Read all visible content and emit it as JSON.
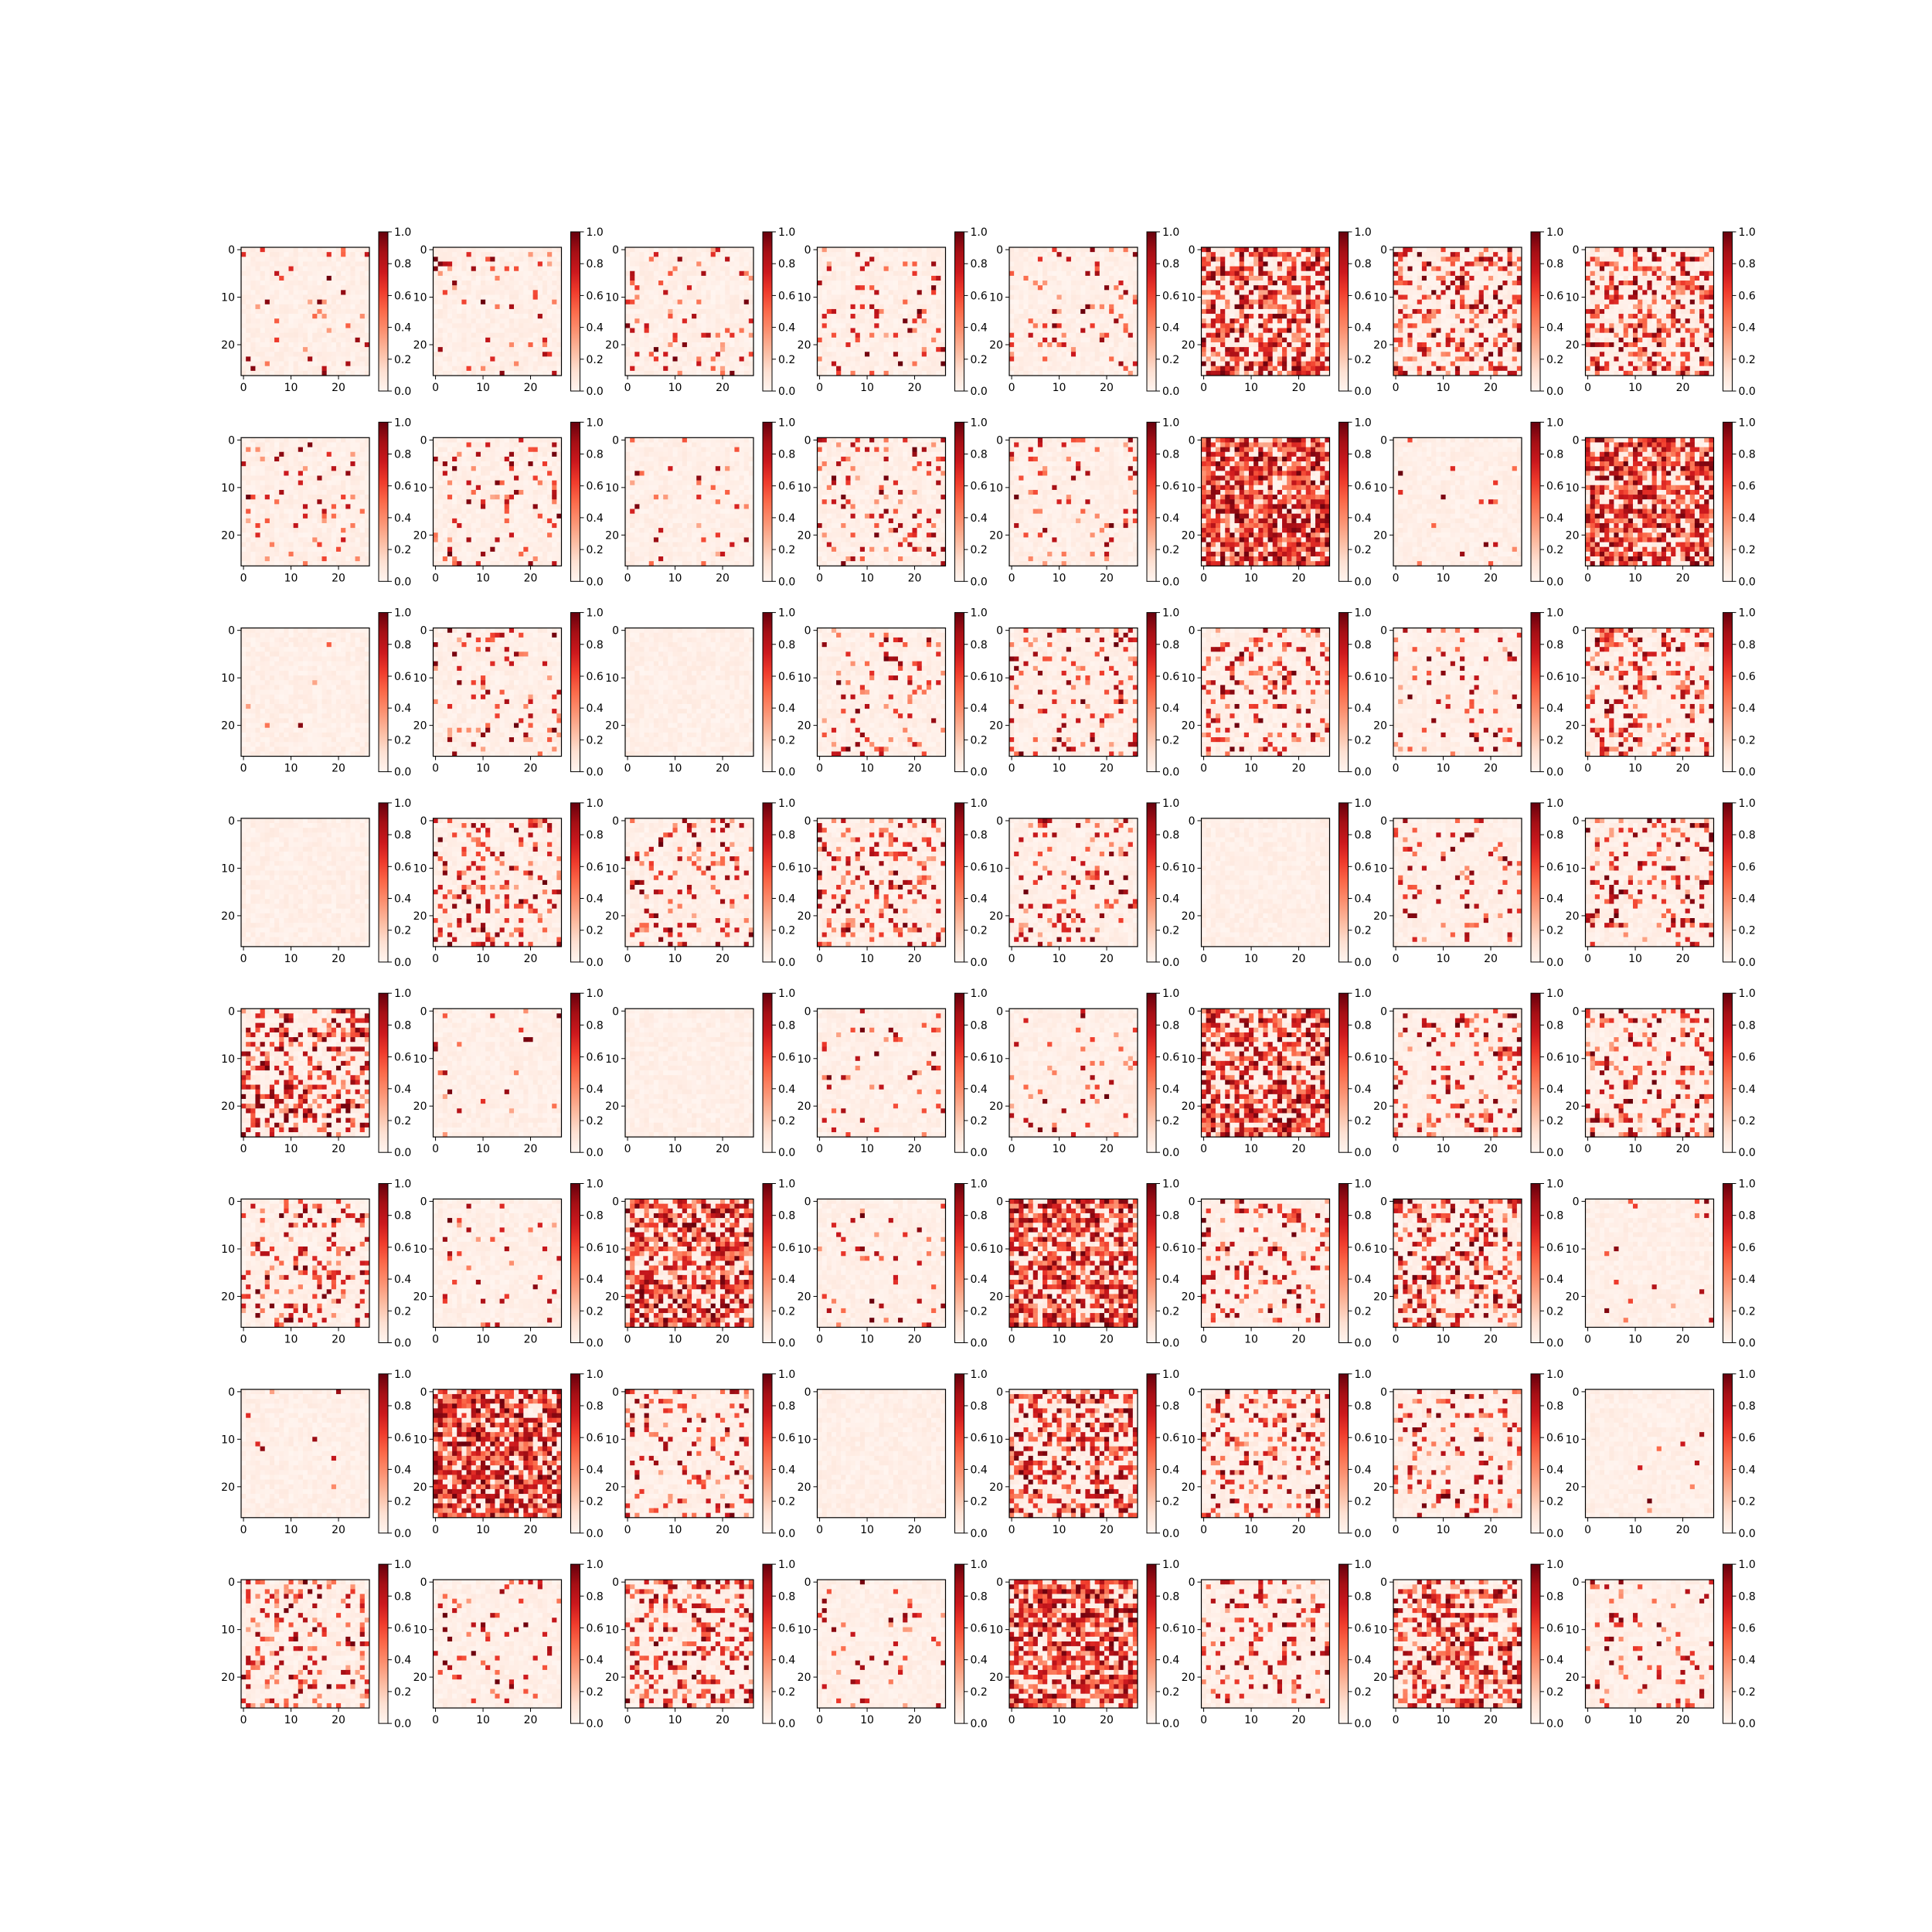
{
  "chart_data": {
    "type": "heatmap",
    "layout": {
      "rows": 8,
      "cols": 8
    },
    "colormap": "Reds",
    "color_range": [
      0.0,
      1.0
    ],
    "matrix_shape": [
      27,
      27
    ],
    "xticks": [
      "0",
      "10",
      "20"
    ],
    "yticks": [
      "0",
      "10",
      "20"
    ],
    "colorbar_ticks": [
      "0.0",
      "0.2",
      "0.4",
      "0.6",
      "0.8",
      "1.0"
    ],
    "panel_density": [
      0.06,
      0.06,
      0.09,
      0.09,
      0.1,
      0.6,
      0.33,
      0.38,
      0.07,
      0.12,
      0.04,
      0.13,
      0.11,
      0.8,
      0.02,
      0.65,
      0.01,
      0.1,
      0.0,
      0.14,
      0.15,
      0.22,
      0.1,
      0.25,
      0.0,
      0.2,
      0.16,
      0.22,
      0.15,
      0.0,
      0.1,
      0.22,
      0.4,
      0.03,
      0.0,
      0.08,
      0.06,
      0.6,
      0.18,
      0.25,
      0.18,
      0.06,
      0.65,
      0.08,
      0.7,
      0.18,
      0.35,
      0.02,
      0.01,
      0.75,
      0.18,
      0.0,
      0.45,
      0.22,
      0.18,
      0.01,
      0.22,
      0.07,
      0.3,
      0.05,
      0.7,
      0.15,
      0.5,
      0.1
    ]
  }
}
